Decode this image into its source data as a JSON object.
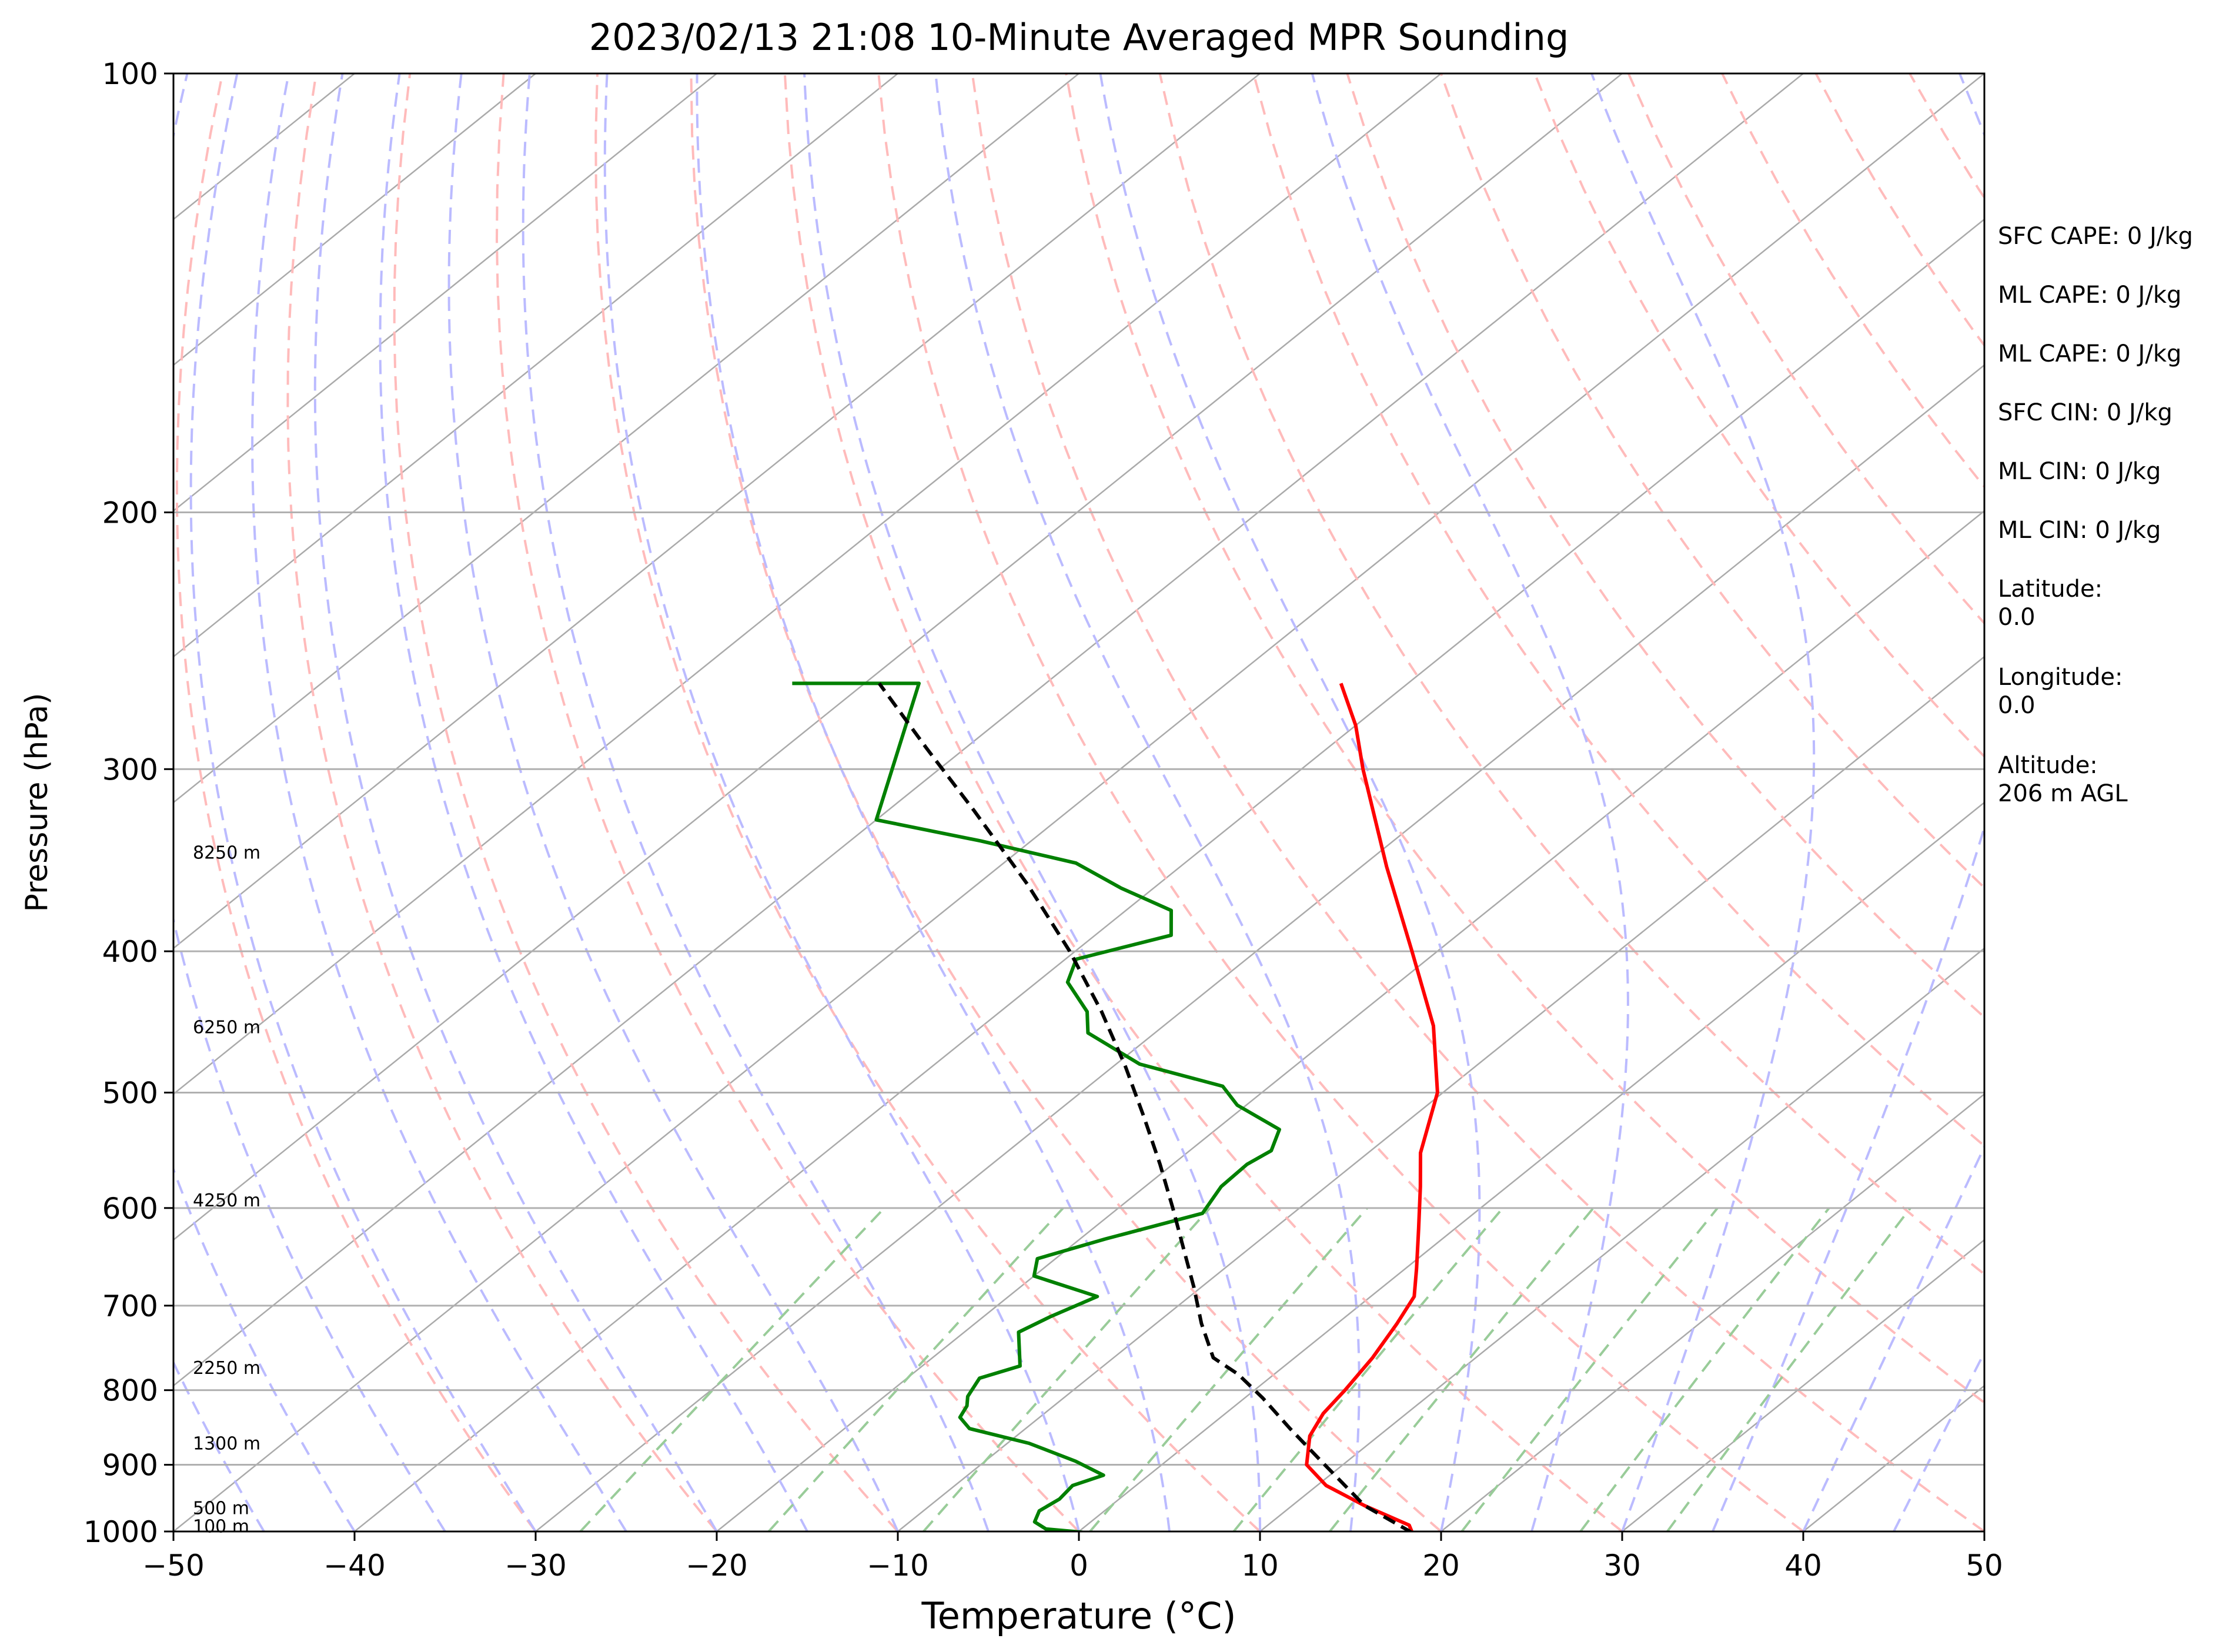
{
  "chart_data": {
    "type": "line",
    "title": "2023/02/13 21:08 10-Minute Averaged MPR Sounding",
    "xlabel": "Temperature (°C)",
    "ylabel": "Pressure (hPa)",
    "xlim": [
      -50,
      50
    ],
    "ylim": [
      1000,
      100
    ],
    "y_scale": "log",
    "skew": "skew-T log-p",
    "x_ticks": [
      "−50",
      "−40",
      "−30",
      "−20",
      "−10",
      "0",
      "10",
      "20",
      "30",
      "40",
      "50"
    ],
    "y_ticks": [
      "100",
      "200",
      "300",
      "400",
      "500",
      "600",
      "700",
      "800",
      "900",
      "1000"
    ],
    "grid": true,
    "series": [
      {
        "role": "temperature",
        "color": "#ff0000",
        "points": [
          [
            1002,
            18.5
          ],
          [
            990,
            17.8
          ],
          [
            960,
            14.0
          ],
          [
            930,
            10.5
          ],
          [
            900,
            8.0
          ],
          [
            860,
            6.2
          ],
          [
            830,
            5.4
          ],
          [
            800,
            5.0
          ],
          [
            760,
            4.3
          ],
          [
            720,
            3.3
          ],
          [
            690,
            2.4
          ],
          [
            660,
            0.6
          ],
          [
            620,
            -2.0
          ],
          [
            580,
            -4.8
          ],
          [
            550,
            -7.1
          ],
          [
            500,
            -10.3
          ],
          [
            450,
            -15.1
          ],
          [
            400,
            -21.4
          ],
          [
            350,
            -28.6
          ],
          [
            300,
            -36.6
          ],
          [
            280,
            -40.0
          ],
          [
            262,
            -43.7
          ]
        ]
      },
      {
        "role": "dewpoint",
        "color": "#008000",
        "points": [
          [
            1002,
            0.6
          ],
          [
            996,
            -2.0
          ],
          [
            985,
            -3.1
          ],
          [
            968,
            -3.6
          ],
          [
            950,
            -3.3
          ],
          [
            930,
            -3.5
          ],
          [
            915,
            -2.5
          ],
          [
            895,
            -5.0
          ],
          [
            870,
            -8.8
          ],
          [
            850,
            -13.1
          ],
          [
            835,
            -14.4
          ],
          [
            820,
            -14.8
          ],
          [
            808,
            -15.4
          ],
          [
            785,
            -16.0
          ],
          [
            770,
            -14.6
          ],
          [
            730,
            -17.0
          ],
          [
            712,
            -16.3
          ],
          [
            690,
            -15.1
          ],
          [
            668,
            -20.0
          ],
          [
            650,
            -21.0
          ],
          [
            630,
            -18.6
          ],
          [
            605,
            -15.0
          ],
          [
            580,
            -15.8
          ],
          [
            560,
            -15.9
          ],
          [
            548,
            -15.5
          ],
          [
            530,
            -16.5
          ],
          [
            510,
            -20.5
          ],
          [
            495,
            -22.6
          ],
          [
            478,
            -28.7
          ],
          [
            455,
            -33.7
          ],
          [
            440,
            -35.2
          ],
          [
            420,
            -38.3
          ],
          [
            405,
            -39.4
          ],
          [
            390,
            -35.8
          ],
          [
            375,
            -37.5
          ],
          [
            362,
            -41.8
          ],
          [
            348,
            -46.0
          ],
          [
            336,
            -52.8
          ],
          [
            325,
            -60.0
          ],
          [
            262,
            -67.0
          ],
          [
            262,
            -74.0
          ]
        ]
      },
      {
        "role": "parcel",
        "color": "#000000",
        "points": [
          [
            1002,
            18.5
          ],
          [
            960,
            14.0
          ],
          [
            900,
            9.0
          ],
          [
            850,
            4.6
          ],
          [
            810,
            1.0
          ],
          [
            780,
            -2.0
          ],
          [
            760,
            -4.5
          ],
          [
            720,
            -7.5
          ],
          [
            680,
            -10.4
          ],
          [
            640,
            -13.6
          ],
          [
            600,
            -17.0
          ],
          [
            560,
            -20.7
          ],
          [
            520,
            -24.8
          ],
          [
            480,
            -29.3
          ],
          [
            440,
            -34.4
          ],
          [
            400,
            -40.3
          ],
          [
            360,
            -47.2
          ],
          [
            320,
            -55.3
          ],
          [
            290,
            -62.2
          ],
          [
            262,
            -69.2
          ]
        ]
      }
    ],
    "height_labels": [
      {
        "text": "8250 m",
        "p": 343
      },
      {
        "text": "6250 m",
        "p": 452
      },
      {
        "text": "4250 m",
        "p": 594
      },
      {
        "text": "2250 m",
        "p": 774
      },
      {
        "text": "1300 m",
        "p": 872
      },
      {
        "text": "500 m",
        "p": 966
      },
      {
        "text": "100 m",
        "p": 994
      }
    ],
    "stats": [
      {
        "text": "SFC CAPE: 0 J/kg"
      },
      {
        "text": "ML CAPE: 0 J/kg"
      },
      {
        "text": "ML CAPE: 0 J/kg"
      },
      {
        "text": "SFC CIN: 0 J/kg"
      },
      {
        "text": "ML CIN: 0 J/kg"
      },
      {
        "text": "ML CIN: 0 J/kg"
      },
      {
        "text": "Latitude:",
        "text2": "0.0"
      },
      {
        "text": "Longitude:",
        "text2": "0.0"
      },
      {
        "text": "Altitude:",
        "text2": "206 m AGL"
      }
    ],
    "reference_lines": {
      "isotherm_color": "#aaaaaa",
      "dry_adiabat_color": "#ffbbbb",
      "moist_adiabat_color": "#bbbbff",
      "mixing_ratio_color": "#99cc99"
    }
  }
}
